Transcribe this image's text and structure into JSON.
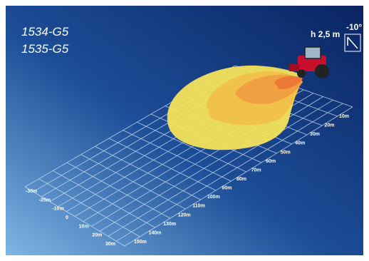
{
  "models": [
    "1534-G5",
    "1535-G5"
  ],
  "mounting": {
    "height": "h 2,5 m",
    "tilt": "-10°"
  },
  "distance_labels": [
    "10m",
    "20m",
    "30m",
    "40m",
    "50m",
    "60m",
    "70m",
    "80m",
    "90m",
    "100m",
    "110m",
    "120m",
    "130m",
    "140m",
    "150m"
  ],
  "lateral_labels": [
    "-30m",
    "-25m",
    "-10m",
    "0",
    "10m",
    "20m",
    "30m"
  ]
}
